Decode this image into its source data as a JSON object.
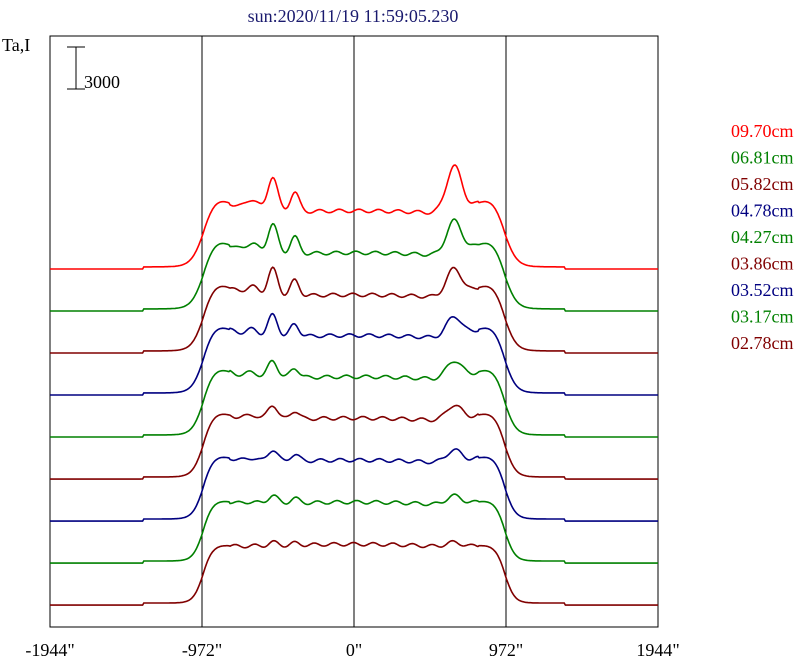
{
  "chart_data": {
    "type": "line",
    "title": "sun:2020/11/19 11:59:05.230",
    "ylabel": "Ta,I",
    "scale_bar_label": "3000",
    "scale_bar_value": 3000,
    "xlim": [
      -1944,
      1944
    ],
    "x_ticks": [
      {
        "value": -1944,
        "label": "-1944\""
      },
      {
        "value": -972,
        "label": "-972\""
      },
      {
        "value": 0,
        "label": "0\""
      },
      {
        "value": 972,
        "label": "972\""
      },
      {
        "value": 1944,
        "label": "1944\""
      }
    ],
    "vertical_lines": [
      -972,
      0,
      972
    ],
    "legend_placement": "right",
    "series": [
      {
        "name": "09.70cm",
        "color": "#ff0000",
        "baseline": 24000,
        "disk": 4000,
        "limb": 1500,
        "peakL": 2600,
        "peakR": 3300
      },
      {
        "name": "06.81cm",
        "color": "#008000",
        "baseline": 21000,
        "disk": 4000,
        "limb": 1500,
        "peakL": 2200,
        "peakR": 2400
      },
      {
        "name": "05.82cm",
        "color": "#800000",
        "baseline": 18000,
        "disk": 4000,
        "limb": 1400,
        "peakL": 2000,
        "peakR": 2000
      },
      {
        "name": "04.78cm",
        "color": "#000080",
        "baseline": 15000,
        "disk": 4100,
        "limb": 1300,
        "peakL": 1600,
        "peakR": 1500
      },
      {
        "name": "04.27cm",
        "color": "#008000",
        "baseline": 12000,
        "disk": 4150,
        "limb": 1200,
        "peakL": 1300,
        "peakR": 1300
      },
      {
        "name": "03.86cm",
        "color": "#800000",
        "baseline": 9000,
        "disk": 4200,
        "limb": 1000,
        "peakL": 1100,
        "peakR": 1100
      },
      {
        "name": "03.52cm",
        "color": "#000080",
        "baseline": 6000,
        "disk": 4200,
        "limb": 900,
        "peakL": 900,
        "peakR": 900
      },
      {
        "name": "03.17cm",
        "color": "#008000",
        "baseline": 3000,
        "disk": 4200,
        "limb": 700,
        "peakL": 650,
        "peakR": 650
      },
      {
        "name": "02.78cm",
        "color": "#800000",
        "baseline": 0,
        "disk": 4200,
        "limb": 500,
        "peakL": 300,
        "peakR": 350
      }
    ]
  }
}
